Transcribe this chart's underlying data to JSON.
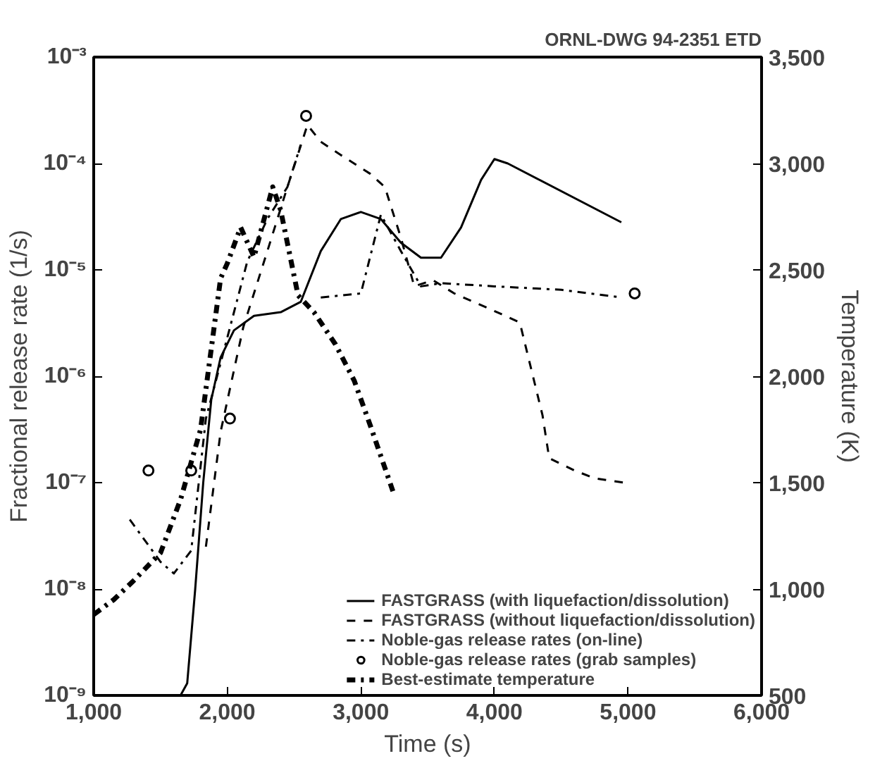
{
  "chart_data": {
    "type": "line",
    "xlabel": "Time (s)",
    "ylabel": "Fractional release rate (1/s)",
    "y2label": "Temperature (K)",
    "annotations": [
      "ORNL-DWG 94-2351 ETD"
    ],
    "log": "y",
    "legend": "bottom right",
    "grid": false,
    "xlim": [
      1000,
      6000
    ],
    "xticks": [
      {
        "value": 1000,
        "label": "1,000"
      },
      {
        "value": 2000,
        "label": "2,000"
      },
      {
        "value": 3000,
        "label": "3,000"
      },
      {
        "value": 4000,
        "label": "4,000"
      },
      {
        "value": 5000,
        "label": "5,000"
      },
      {
        "value": 6000,
        "label": "6,000"
      }
    ],
    "ylim": [
      1e-09,
      0.001
    ],
    "yticks": [
      {
        "value": 1e-09,
        "label": "10⁻⁹"
      },
      {
        "value": 1e-08,
        "label": "10⁻⁸"
      },
      {
        "value": 1e-07,
        "label": "10⁻⁷"
      },
      {
        "value": 1e-06,
        "label": "10⁻⁶"
      },
      {
        "value": 1e-05,
        "label": "10⁻⁵"
      },
      {
        "value": 0.0001,
        "label": "10⁻⁴"
      },
      {
        "value": 0.001,
        "label": "10⁻³"
      }
    ],
    "y2lim": [
      500,
      3500
    ],
    "y2ticks": [
      500,
      {
        "value": 1000,
        "label": "1,000"
      },
      {
        "value": 1500,
        "label": "1,500"
      },
      {
        "value": 2000,
        "label": "2,000"
      },
      {
        "value": 2500,
        "label": "2,500"
      },
      {
        "value": 3000,
        "label": "3,000"
      },
      {
        "value": 3500,
        "label": "3,500"
      }
    ],
    "series": [
      {
        "name": "FASTGRASS (with liquefaction/dissolution)",
        "color": "#000000",
        "line_style": "solid",
        "x": [
          1000,
          1650,
          1700,
          1760,
          1820,
          1880,
          1950,
          2050,
          2200,
          2400,
          2550,
          2700,
          2850,
          3000,
          3150,
          3300,
          3450,
          3600,
          3750,
          3900,
          4000,
          4100,
          4950
        ],
        "values": [
          1e-09,
          1e-09,
          1.3e-09,
          1e-08,
          1e-07,
          6e-07,
          1.5e-06,
          2.7e-06,
          3.7e-06,
          4e-06,
          5e-06,
          1.5e-05,
          3e-05,
          3.5e-05,
          3e-05,
          1.8e-05,
          1.3e-05,
          1.3e-05,
          2.5e-05,
          7e-05,
          0.00011,
          0.0001,
          2.8e-05
        ]
      },
      {
        "name": "FASTGRASS (without liquefaction/dissolution)",
        "color": "#000000",
        "line_style": "dashed",
        "x": [
          1840,
          1950,
          2120,
          2300,
          2450,
          2600,
          2700,
          2850,
          3070,
          3180,
          3300,
          3400,
          3540,
          3700,
          4020,
          4190,
          4360,
          4410,
          4600,
          4750,
          4970
        ],
        "values": [
          2.5e-08,
          3e-07,
          2.9e-06,
          1.5e-05,
          6e-05,
          0.00023,
          0.00016,
          0.00012,
          8e-05,
          6e-05,
          2e-05,
          7e-06,
          8e-06,
          6e-06,
          4e-06,
          3.2e-06,
          4.3e-07,
          1.7e-07,
          1.3e-07,
          1.1e-07,
          1e-07
        ]
      },
      {
        "name": "Noble-gas release rates (on-line)",
        "color": "#000000",
        "line_style": "dashdot",
        "x": [
          1270,
          1500,
          1600,
          1730,
          1840,
          2000,
          2150,
          2300,
          2450,
          2550,
          2560,
          2700,
          3000,
          3150,
          3300,
          3450,
          3600,
          4000,
          4500,
          4950
        ],
        "values": [
          4.5e-08,
          1.8e-08,
          1.4e-08,
          2.3e-08,
          4e-07,
          2.3e-06,
          1.2e-05,
          3e-05,
          6e-05,
          0.00015,
          null,
          5.5e-06,
          6e-06,
          3.3e-05,
          1.5e-05,
          7e-06,
          7.5e-06,
          7e-06,
          6.5e-06,
          5.5e-06
        ]
      },
      {
        "name": "Noble-gas release rates (grab samples)",
        "type": "scatter",
        "marker": "circle",
        "color": "#000000",
        "x": [
          1410,
          1730,
          2020,
          2590,
          5050
        ],
        "values": [
          1.3e-07,
          1.3e-07,
          4e-07,
          0.00028,
          6e-06
        ]
      },
      {
        "name": "Best-estimate temperature",
        "color": "#000000",
        "line_style": "dashdot",
        "axis": "y2",
        "x": [
          1000,
          1150,
          1300,
          1500,
          1650,
          1800,
          1950,
          2000,
          2100,
          2200,
          2340,
          2400,
          2530,
          2650,
          2810,
          2950,
          3070,
          3240
        ],
        "values": [
          880,
          950,
          1040,
          1170,
          1420,
          1750,
          2460,
          2530,
          2700,
          2560,
          2890,
          2780,
          2380,
          2300,
          2150,
          1980,
          1770,
          1460
        ]
      }
    ]
  }
}
